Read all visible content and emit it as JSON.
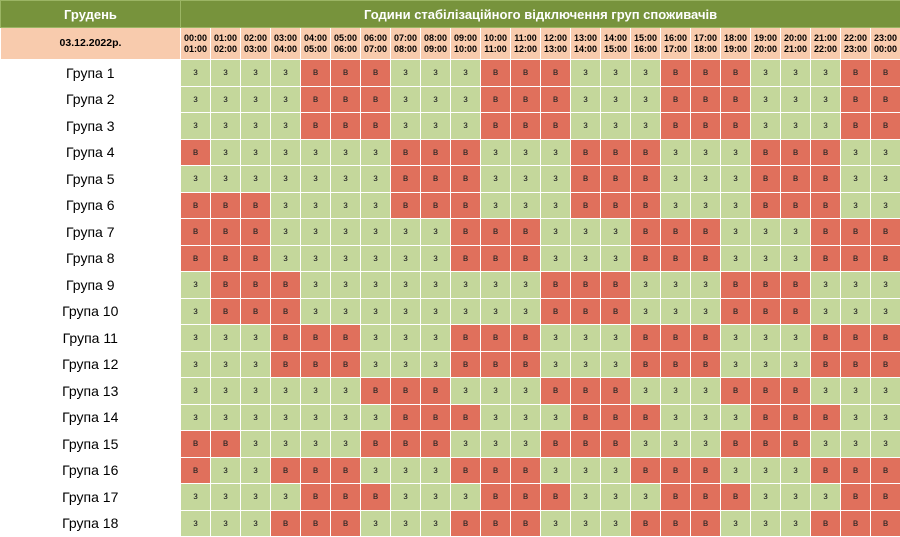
{
  "header": {
    "month": "Грудень",
    "title": "Години стабілізаційного відключення груп споживачів",
    "date": "03.12.2022р."
  },
  "hours": [
    {
      "from": "00:00",
      "to": "01:00"
    },
    {
      "from": "01:00",
      "to": "02:00"
    },
    {
      "from": "02:00",
      "to": "03:00"
    },
    {
      "from": "03:00",
      "to": "04:00"
    },
    {
      "from": "04:00",
      "to": "05:00"
    },
    {
      "from": "05:00",
      "to": "06:00"
    },
    {
      "from": "06:00",
      "to": "07:00"
    },
    {
      "from": "07:00",
      "to": "08:00"
    },
    {
      "from": "08:00",
      "to": "09:00"
    },
    {
      "from": "09:00",
      "to": "10:00"
    },
    {
      "from": "10:00",
      "to": "11:00"
    },
    {
      "from": "11:00",
      "to": "12:00"
    },
    {
      "from": "12:00",
      "to": "13:00"
    },
    {
      "from": "13:00",
      "to": "14:00"
    },
    {
      "from": "14:00",
      "to": "15:00"
    },
    {
      "from": "15:00",
      "to": "16:00"
    },
    {
      "from": "16:00",
      "to": "17:00"
    },
    {
      "from": "17:00",
      "to": "18:00"
    },
    {
      "from": "18:00",
      "to": "19:00"
    },
    {
      "from": "19:00",
      "to": "20:00"
    },
    {
      "from": "20:00",
      "to": "21:00"
    },
    {
      "from": "21:00",
      "to": "22:00"
    },
    {
      "from": "22:00",
      "to": "23:00"
    },
    {
      "from": "23:00",
      "to": "00:00"
    }
  ],
  "status_colors": {
    "з": "#c4d79b",
    "в": "#e0705c"
  },
  "groups": [
    {
      "label": "Група 1",
      "cells": [
        "з",
        "з",
        "з",
        "з",
        "в",
        "в",
        "в",
        "з",
        "з",
        "з",
        "в",
        "в",
        "в",
        "з",
        "з",
        "з",
        "в",
        "в",
        "в",
        "з",
        "з",
        "з",
        "в",
        "в"
      ]
    },
    {
      "label": "Група 2",
      "cells": [
        "з",
        "з",
        "з",
        "з",
        "в",
        "в",
        "в",
        "з",
        "з",
        "з",
        "в",
        "в",
        "в",
        "з",
        "з",
        "з",
        "в",
        "в",
        "в",
        "з",
        "з",
        "з",
        "в",
        "в"
      ]
    },
    {
      "label": "Група 3",
      "cells": [
        "з",
        "з",
        "з",
        "з",
        "в",
        "в",
        "в",
        "з",
        "з",
        "з",
        "в",
        "в",
        "в",
        "з",
        "з",
        "з",
        "в",
        "в",
        "в",
        "з",
        "з",
        "з",
        "в",
        "в"
      ]
    },
    {
      "label": "Група 4",
      "cells": [
        "в",
        "з",
        "з",
        "з",
        "з",
        "з",
        "з",
        "в",
        "в",
        "в",
        "з",
        "з",
        "з",
        "в",
        "в",
        "в",
        "з",
        "з",
        "з",
        "в",
        "в",
        "в",
        "з",
        "з"
      ]
    },
    {
      "label": "Група 5",
      "cells": [
        "з",
        "з",
        "з",
        "з",
        "з",
        "з",
        "з",
        "в",
        "в",
        "в",
        "з",
        "з",
        "з",
        "в",
        "в",
        "в",
        "з",
        "з",
        "з",
        "в",
        "в",
        "в",
        "з",
        "з"
      ]
    },
    {
      "label": "Група 6",
      "cells": [
        "в",
        "в",
        "в",
        "з",
        "з",
        "з",
        "з",
        "в",
        "в",
        "в",
        "з",
        "з",
        "з",
        "в",
        "в",
        "в",
        "з",
        "з",
        "з",
        "в",
        "в",
        "в",
        "з",
        "з"
      ]
    },
    {
      "label": "Група 7",
      "cells": [
        "в",
        "в",
        "в",
        "з",
        "з",
        "з",
        "з",
        "з",
        "з",
        "в",
        "в",
        "в",
        "з",
        "з",
        "з",
        "в",
        "в",
        "в",
        "з",
        "з",
        "з",
        "в",
        "в",
        "в"
      ]
    },
    {
      "label": "Група 8",
      "cells": [
        "в",
        "в",
        "в",
        "з",
        "з",
        "з",
        "з",
        "з",
        "з",
        "в",
        "в",
        "в",
        "з",
        "з",
        "з",
        "в",
        "в",
        "в",
        "з",
        "з",
        "з",
        "в",
        "в",
        "в"
      ]
    },
    {
      "label": "Група 9",
      "cells": [
        "з",
        "в",
        "в",
        "в",
        "з",
        "з",
        "з",
        "з",
        "з",
        "з",
        "з",
        "з",
        "в",
        "в",
        "в",
        "з",
        "з",
        "з",
        "в",
        "в",
        "в",
        "з",
        "з",
        "з"
      ]
    },
    {
      "label": "Група 10",
      "cells": [
        "з",
        "в",
        "в",
        "в",
        "з",
        "з",
        "з",
        "з",
        "з",
        "з",
        "з",
        "з",
        "в",
        "в",
        "в",
        "з",
        "з",
        "з",
        "в",
        "в",
        "в",
        "з",
        "з",
        "з"
      ]
    },
    {
      "label": "Група 11",
      "cells": [
        "з",
        "з",
        "з",
        "в",
        "в",
        "в",
        "з",
        "з",
        "з",
        "в",
        "в",
        "в",
        "з",
        "з",
        "з",
        "в",
        "в",
        "в",
        "з",
        "з",
        "з",
        "в",
        "в",
        "в"
      ]
    },
    {
      "label": "Група 12",
      "cells": [
        "з",
        "з",
        "з",
        "в",
        "в",
        "в",
        "з",
        "з",
        "з",
        "в",
        "в",
        "в",
        "з",
        "з",
        "з",
        "в",
        "в",
        "в",
        "з",
        "з",
        "з",
        "в",
        "в",
        "в"
      ]
    },
    {
      "label": "Група 13",
      "cells": [
        "з",
        "з",
        "з",
        "з",
        "з",
        "з",
        "в",
        "в",
        "в",
        "з",
        "з",
        "з",
        "в",
        "в",
        "в",
        "з",
        "з",
        "з",
        "в",
        "в",
        "в",
        "з",
        "з",
        "з"
      ]
    },
    {
      "label": "Група 14",
      "cells": [
        "з",
        "з",
        "з",
        "з",
        "з",
        "з",
        "з",
        "в",
        "в",
        "в",
        "з",
        "з",
        "з",
        "в",
        "в",
        "в",
        "з",
        "з",
        "з",
        "в",
        "в",
        "в",
        "з",
        "з"
      ]
    },
    {
      "label": "Група 15",
      "cells": [
        "в",
        "в",
        "з",
        "з",
        "з",
        "з",
        "в",
        "в",
        "в",
        "з",
        "з",
        "з",
        "в",
        "в",
        "в",
        "з",
        "з",
        "з",
        "в",
        "в",
        "в",
        "з",
        "з",
        "з"
      ]
    },
    {
      "label": "Група 16",
      "cells": [
        "в",
        "з",
        "з",
        "в",
        "в",
        "в",
        "з",
        "з",
        "з",
        "в",
        "в",
        "в",
        "з",
        "з",
        "з",
        "в",
        "в",
        "в",
        "з",
        "з",
        "з",
        "в",
        "в",
        "в"
      ]
    },
    {
      "label": "Група 17",
      "cells": [
        "з",
        "з",
        "з",
        "з",
        "в",
        "в",
        "в",
        "з",
        "з",
        "з",
        "в",
        "в",
        "в",
        "з",
        "з",
        "з",
        "в",
        "в",
        "в",
        "з",
        "з",
        "з",
        "в",
        "в"
      ]
    },
    {
      "label": "Група 18",
      "cells": [
        "з",
        "з",
        "з",
        "в",
        "в",
        "в",
        "з",
        "з",
        "з",
        "в",
        "в",
        "в",
        "з",
        "з",
        "з",
        "в",
        "в",
        "в",
        "з",
        "з",
        "з",
        "в",
        "в",
        "в"
      ]
    }
  ]
}
